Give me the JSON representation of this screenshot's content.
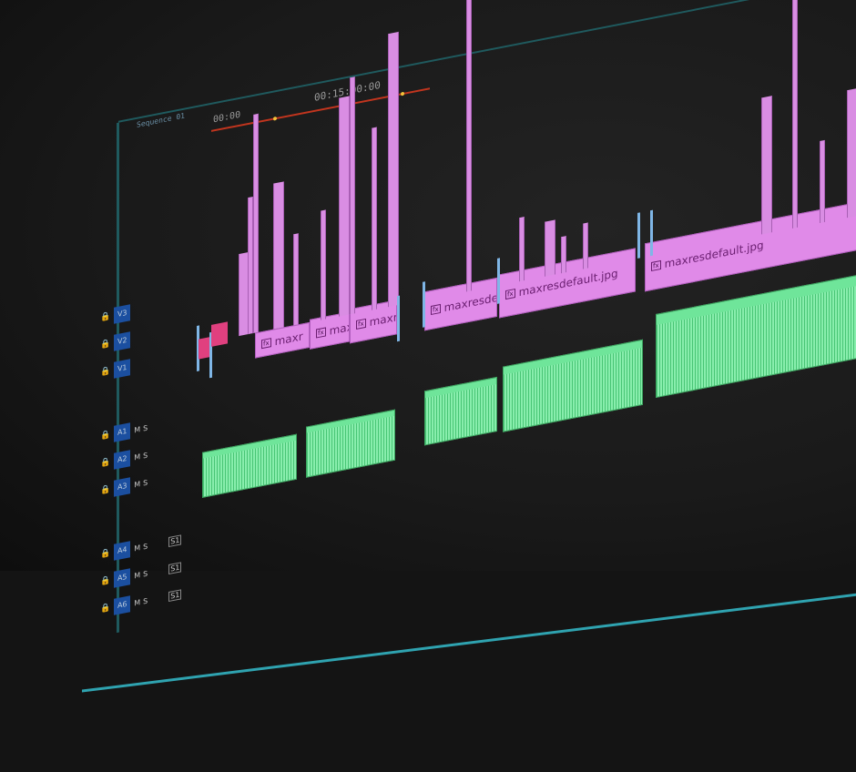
{
  "timeline": {
    "timecode_playhead": "00:15:00:00",
    "timecode_start": "00:00",
    "sequence_tab": "Sequence 01"
  },
  "video_clips": [
    {
      "label": "maxr",
      "icon": "fx"
    },
    {
      "label": "maxi",
      "icon": "fx"
    },
    {
      "label": "maxre",
      "icon": "fx"
    },
    {
      "label": "maxresde",
      "icon": "fx"
    },
    {
      "label": "maxresdefault.jpg",
      "icon": "fx"
    },
    {
      "label": "maxresdefault.jpg",
      "icon": "fx"
    }
  ],
  "tracks": [
    {
      "id": "V3"
    },
    {
      "id": "V2"
    },
    {
      "id": "V1"
    },
    {
      "id": "A1",
      "m": "M",
      "s": "S"
    },
    {
      "id": "A2",
      "m": "M",
      "s": "S"
    },
    {
      "id": "A3",
      "m": "M",
      "s": "S"
    },
    {
      "id": "A4",
      "m": "M",
      "s": "S",
      "submix": "S1"
    },
    {
      "id": "A5",
      "m": "M",
      "s": "S",
      "submix": "S1"
    },
    {
      "id": "A6",
      "m": "M",
      "s": "S",
      "submix": "S1"
    }
  ],
  "colors": {
    "video_clip": "#e08ae8",
    "audio_clip": "#6fe59a",
    "playhead": "#c2351e",
    "track_target": "#1b4fa0"
  }
}
